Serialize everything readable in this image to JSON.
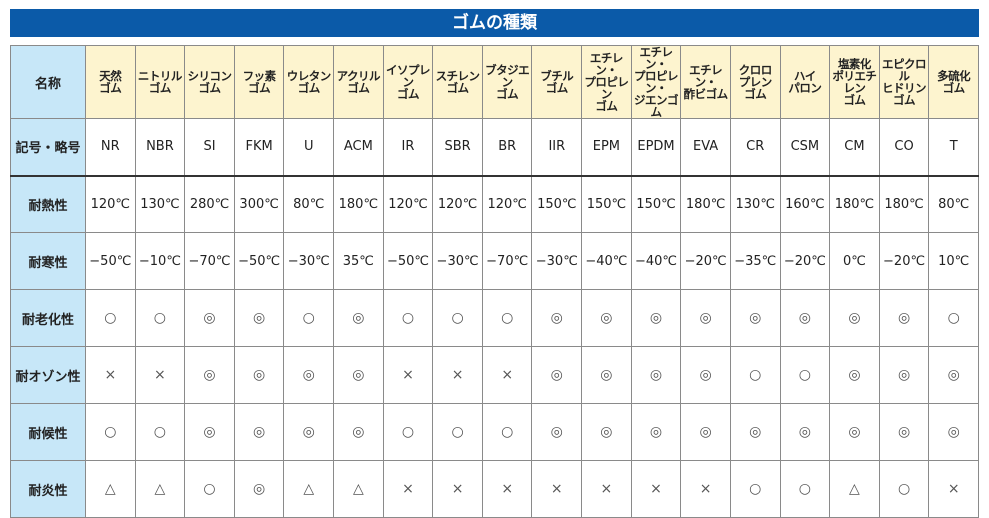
{
  "title": "ゴムの種類",
  "row_labels": {
    "name": "名称",
    "code": "記号・略号",
    "heat": "耐熱性",
    "cold": "耐寒性",
    "aging": "耐老化性",
    "ozone": "耐オゾン性",
    "weather": "耐候性",
    "flame": "耐炎性"
  },
  "columns": [
    {
      "name": "天然\nゴム",
      "code": "NR",
      "heat": "120℃",
      "cold": "−50℃",
      "aging": "○",
      "ozone": "×",
      "weather": "○",
      "flame": "△"
    },
    {
      "name": "ニトリル\nゴム",
      "code": "NBR",
      "heat": "130℃",
      "cold": "−10℃",
      "aging": "○",
      "ozone": "×",
      "weather": "○",
      "flame": "△"
    },
    {
      "name": "シリコン\nゴム",
      "code": "SI",
      "heat": "280℃",
      "cold": "−70℃",
      "aging": "◎",
      "ozone": "◎",
      "weather": "◎",
      "flame": "○"
    },
    {
      "name": "フッ素\nゴム",
      "code": "FKM",
      "heat": "300℃",
      "cold": "−50℃",
      "aging": "◎",
      "ozone": "◎",
      "weather": "◎",
      "flame": "◎"
    },
    {
      "name": "ウレタン\nゴム",
      "code": "U",
      "heat": "80℃",
      "cold": "−30℃",
      "aging": "○",
      "ozone": "◎",
      "weather": "◎",
      "flame": "△"
    },
    {
      "name": "アクリル\nゴム",
      "code": "ACM",
      "heat": "180℃",
      "cold": "35℃",
      "aging": "◎",
      "ozone": "◎",
      "weather": "◎",
      "flame": "△"
    },
    {
      "name": "イソプレン\nゴム",
      "code": "IR",
      "heat": "120℃",
      "cold": "−50℃",
      "aging": "○",
      "ozone": "×",
      "weather": "○",
      "flame": "×"
    },
    {
      "name": "スチレン\nゴム",
      "code": "SBR",
      "heat": "120℃",
      "cold": "−30℃",
      "aging": "○",
      "ozone": "×",
      "weather": "○",
      "flame": "×"
    },
    {
      "name": "ブタジエン\nゴム",
      "code": "BR",
      "heat": "120℃",
      "cold": "−70℃",
      "aging": "○",
      "ozone": "×",
      "weather": "○",
      "flame": "×"
    },
    {
      "name": "ブチル\nゴム",
      "code": "IIR",
      "heat": "150℃",
      "cold": "−30℃",
      "aging": "◎",
      "ozone": "◎",
      "weather": "◎",
      "flame": "×"
    },
    {
      "name": "エチレン・\nプロピレン\nゴム",
      "code": "EPM",
      "heat": "150℃",
      "cold": "−40℃",
      "aging": "◎",
      "ozone": "◎",
      "weather": "◎",
      "flame": "×"
    },
    {
      "name": "エチレン・\nプロピレン・\nジエンゴム",
      "code": "EPDM",
      "heat": "150℃",
      "cold": "−40℃",
      "aging": "◎",
      "ozone": "◎",
      "weather": "◎",
      "flame": "×"
    },
    {
      "name": "エチレン・\n酢ビゴム",
      "code": "EVA",
      "heat": "180℃",
      "cold": "−20℃",
      "aging": "◎",
      "ozone": "◎",
      "weather": "◎",
      "flame": "×"
    },
    {
      "name": "クロロ\nプレン\nゴム",
      "code": "CR",
      "heat": "130℃",
      "cold": "−35℃",
      "aging": "◎",
      "ozone": "○",
      "weather": "◎",
      "flame": "○"
    },
    {
      "name": "ハイ\nパロン",
      "code": "CSM",
      "heat": "160℃",
      "cold": "−20℃",
      "aging": "◎",
      "ozone": "○",
      "weather": "◎",
      "flame": "○"
    },
    {
      "name": "塩素化\nポリエチレン\nゴム",
      "code": "CM",
      "heat": "180℃",
      "cold": "0℃",
      "aging": "◎",
      "ozone": "◎",
      "weather": "◎",
      "flame": "△"
    },
    {
      "name": "エピクロル\nヒドリン\nゴム",
      "code": "CO",
      "heat": "180℃",
      "cold": "−20℃",
      "aging": "◎",
      "ozone": "◎",
      "weather": "◎",
      "flame": "○"
    },
    {
      "name": "多硫化\nゴム",
      "code": "T",
      "heat": "80℃",
      "cold": "10℃",
      "aging": "○",
      "ozone": "◎",
      "weather": "◎",
      "flame": "×"
    }
  ],
  "colors": {
    "title_bg": "#0b5aa8",
    "header_bg": "#fdf4cf",
    "label_bg": "#c7e7f8"
  }
}
